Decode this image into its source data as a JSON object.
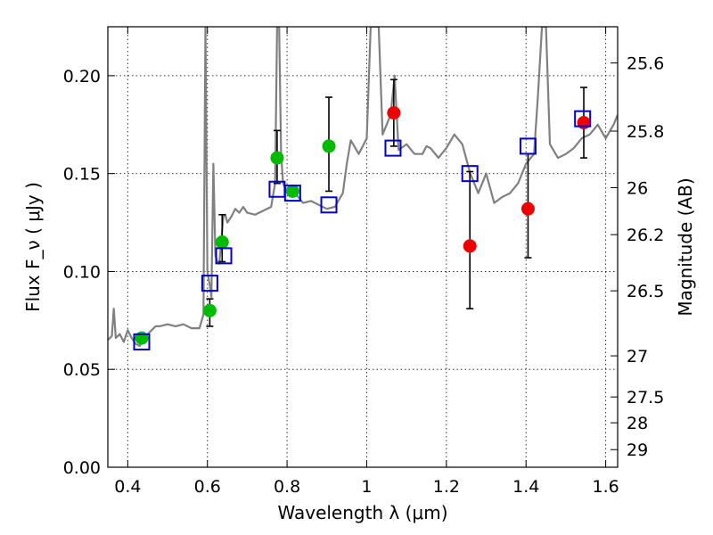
{
  "chart_data": {
    "type": "scatter",
    "title": "",
    "xlabel": "Wavelength  λ (μm)",
    "ylabel": "Flux  F_ν  ( μJy )",
    "ylabel_right": "Magnitude (AB)",
    "xlim": [
      0.35,
      1.63
    ],
    "ylim": [
      0.0,
      0.225
    ],
    "grid": true,
    "x_ticks": [
      0.4,
      0.6,
      0.8,
      1.0,
      1.2,
      1.4,
      1.6
    ],
    "x_tick_labels": [
      "0.4",
      "0.6",
      "0.8",
      "1",
      "1.2",
      "1.4",
      "1.6"
    ],
    "y_ticks": [
      0.0,
      0.05,
      0.1,
      0.15,
      0.2
    ],
    "y_tick_labels": [
      "0.00",
      "0.05",
      "0.10",
      "0.15",
      "0.20"
    ],
    "right_axis": {
      "ticks": [
        {
          "label": "25.6",
          "flux": 0.2065
        },
        {
          "label": "25.8",
          "flux": 0.1717
        },
        {
          "label": "26",
          "flux": 0.1428
        },
        {
          "label": "26.2",
          "flux": 0.1188
        },
        {
          "label": "26.5",
          "flux": 0.0901
        },
        {
          "label": "27",
          "flux": 0.0569
        },
        {
          "label": "27.5",
          "flux": 0.0359
        },
        {
          "label": "28",
          "flux": 0.0227
        },
        {
          "label": "29",
          "flux": 0.009
        }
      ]
    },
    "colors": {
      "model": "#808080",
      "green": "#00bb00",
      "red": "#ee0000",
      "square": "#0000cc",
      "errorbar": "#000000"
    },
    "model_spectrum": {
      "x": [
        0.35,
        0.36,
        0.365,
        0.37,
        0.38,
        0.39,
        0.4,
        0.41,
        0.42,
        0.43,
        0.44,
        0.45,
        0.46,
        0.47,
        0.48,
        0.5,
        0.52,
        0.54,
        0.56,
        0.58,
        0.59,
        0.595,
        0.6,
        0.605,
        0.61,
        0.615,
        0.62,
        0.625,
        0.63,
        0.64,
        0.645,
        0.65,
        0.66,
        0.67,
        0.68,
        0.69,
        0.7,
        0.72,
        0.74,
        0.76,
        0.77,
        0.775,
        0.78,
        0.785,
        0.79,
        0.8,
        0.82,
        0.84,
        0.86,
        0.88,
        0.9,
        0.92,
        0.94,
        0.95,
        0.96,
        0.98,
        1.0,
        1.01,
        1.02,
        1.03,
        1.04,
        1.05,
        1.06,
        1.07,
        1.08,
        1.1,
        1.12,
        1.14,
        1.15,
        1.16,
        1.18,
        1.2,
        1.22,
        1.24,
        1.26,
        1.28,
        1.3,
        1.32,
        1.34,
        1.36,
        1.38,
        1.4,
        1.42,
        1.43,
        1.44,
        1.45,
        1.46,
        1.48,
        1.5,
        1.52,
        1.54,
        1.56,
        1.58,
        1.6,
        1.62,
        1.63
      ],
      "y": [
        0.065,
        0.067,
        0.081,
        0.066,
        0.068,
        0.064,
        0.07,
        0.066,
        0.063,
        0.062,
        0.066,
        0.068,
        0.07,
        0.072,
        0.072,
        0.073,
        0.072,
        0.073,
        0.071,
        0.071,
        0.078,
        0.225,
        0.1,
        0.094,
        0.087,
        0.155,
        0.108,
        0.105,
        0.104,
        0.128,
        0.129,
        0.125,
        0.128,
        0.132,
        0.13,
        0.133,
        0.13,
        0.129,
        0.131,
        0.133,
        0.145,
        0.225,
        0.225,
        0.16,
        0.145,
        0.14,
        0.14,
        0.135,
        0.136,
        0.134,
        0.132,
        0.133,
        0.14,
        0.155,
        0.167,
        0.16,
        0.168,
        0.225,
        0.225,
        0.225,
        0.17,
        0.175,
        0.18,
        0.2,
        0.162,
        0.165,
        0.16,
        0.16,
        0.164,
        0.163,
        0.158,
        0.163,
        0.17,
        0.165,
        0.15,
        0.14,
        0.15,
        0.135,
        0.138,
        0.14,
        0.145,
        0.155,
        0.16,
        0.19,
        0.225,
        0.225,
        0.165,
        0.158,
        0.16,
        0.163,
        0.168,
        0.17,
        0.175,
        0.168,
        0.175,
        0.18
      ]
    },
    "series": [
      {
        "marker": "circle",
        "color": "green",
        "points": [
          {
            "x": 0.435,
            "y": 0.066
          },
          {
            "x": 0.606,
            "y": 0.08,
            "yerr": [
              0.072,
              0.086
            ]
          },
          {
            "x": 0.637,
            "y": 0.115,
            "yerr": [
              0.105,
              0.129
            ]
          },
          {
            "x": 0.775,
            "y": 0.158,
            "yerr": [
              0.145,
              0.172
            ]
          },
          {
            "x": 0.814,
            "y": 0.141
          },
          {
            "x": 0.905,
            "y": 0.164,
            "yerr": [
              0.141,
              0.189
            ]
          }
        ]
      },
      {
        "marker": "circle",
        "color": "red",
        "points": [
          {
            "x": 1.068,
            "y": 0.181,
            "yerr": [
              0.164,
              0.198
            ]
          },
          {
            "x": 1.259,
            "y": 0.113,
            "yerr": [
              0.081,
              0.151
            ]
          },
          {
            "x": 1.405,
            "y": 0.132,
            "yerr": [
              0.107,
              0.16
            ]
          },
          {
            "x": 1.545,
            "y": 0.176,
            "yerr": [
              0.158,
              0.194
            ]
          }
        ]
      },
      {
        "marker": "square",
        "color": "square",
        "points": [
          {
            "x": 0.435,
            "y": 0.064
          },
          {
            "x": 0.606,
            "y": 0.094
          },
          {
            "x": 0.641,
            "y": 0.108
          },
          {
            "x": 0.775,
            "y": 0.142
          },
          {
            "x": 0.814,
            "y": 0.14
          },
          {
            "x": 0.905,
            "y": 0.134
          },
          {
            "x": 1.066,
            "y": 0.163
          },
          {
            "x": 1.259,
            "y": 0.15
          },
          {
            "x": 1.405,
            "y": 0.164
          },
          {
            "x": 1.542,
            "y": 0.178
          }
        ]
      }
    ]
  }
}
